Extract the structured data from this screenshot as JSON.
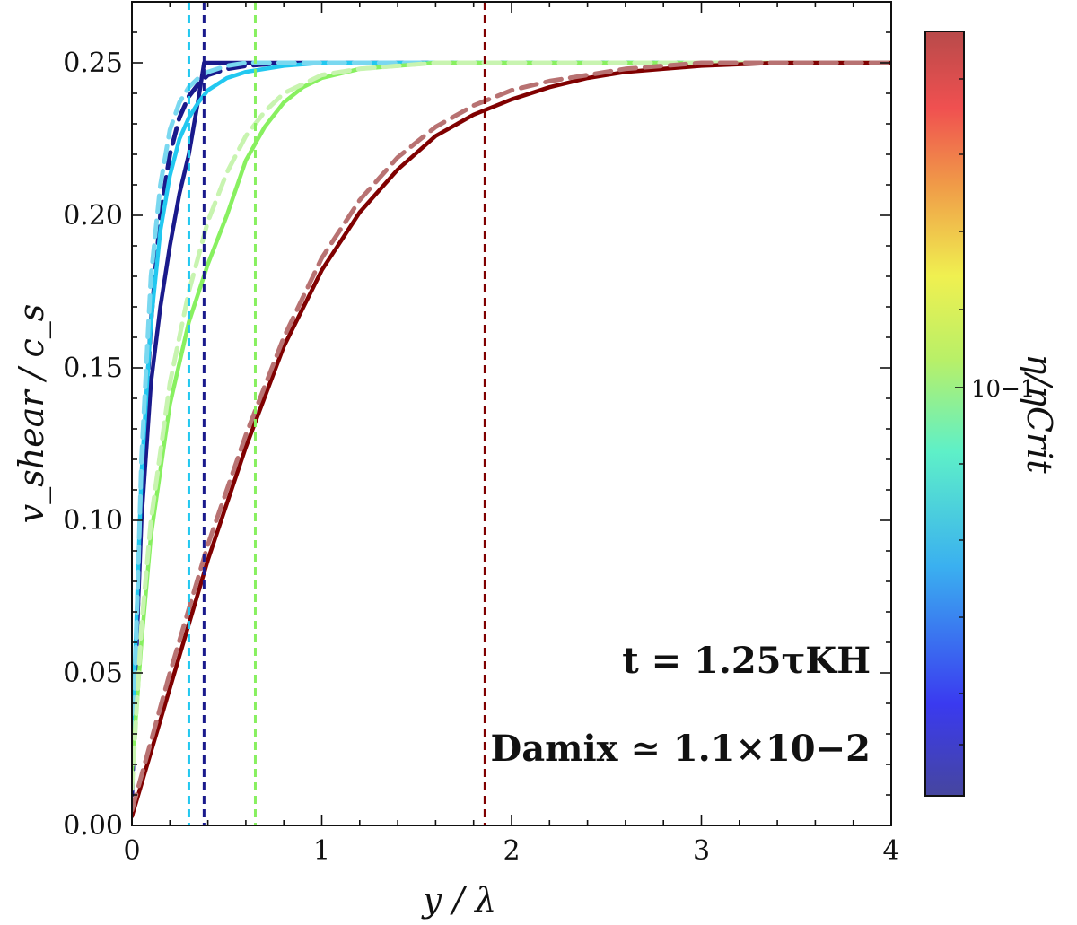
{
  "chart_data": {
    "type": "line",
    "xlabel": "y / λ",
    "ylabel": "v_shear / c_s",
    "xlim": [
      0,
      4
    ],
    "ylim": [
      0,
      0.27
    ],
    "xticks": [
      0,
      1,
      2,
      3,
      4
    ],
    "xtick_labels": [
      "0",
      "1",
      "2",
      "3",
      "4"
    ],
    "yticks": [
      0.0,
      0.05,
      0.1,
      0.15,
      0.2,
      0.25
    ],
    "ytick_labels": [
      "0.00",
      "0.05",
      "0.10",
      "0.15",
      "0.20",
      "0.25"
    ],
    "grid": false,
    "annotations": {
      "time": "t = 1.25τKH",
      "damkohler": "Damix ≃ 1.1×10−2"
    },
    "colorbar": {
      "label": "η/ηCrit",
      "scale": "log",
      "colormap": "jet",
      "tick_label": "10−1"
    },
    "series": [
      {
        "color": "#1a1a8c",
        "style": "solid",
        "x": [
          0,
          0.05,
          0.1,
          0.15,
          0.2,
          0.25,
          0.3,
          0.35,
          0.38,
          0.45,
          0.6,
          1.0,
          2.0,
          3.0,
          4.0
        ],
        "y": [
          0.02,
          0.1,
          0.145,
          0.17,
          0.19,
          0.207,
          0.22,
          0.238,
          0.25,
          0.25,
          0.25,
          0.25,
          0.25,
          0.25,
          0.25
        ]
      },
      {
        "color": "#1a1a8c",
        "style": "dashed",
        "x": [
          0,
          0.05,
          0.1,
          0.15,
          0.2,
          0.25,
          0.3,
          0.35,
          0.4,
          0.5,
          0.6,
          0.8,
          1.0,
          1.5,
          2.0,
          3.0,
          4.0
        ],
        "y": [
          0.01,
          0.11,
          0.165,
          0.2,
          0.22,
          0.232,
          0.239,
          0.243,
          0.246,
          0.248,
          0.249,
          0.25,
          0.25,
          0.25,
          0.25,
          0.25,
          0.25
        ]
      },
      {
        "color": "#22c8f0",
        "style": "solid",
        "x": [
          0,
          0.05,
          0.1,
          0.15,
          0.2,
          0.25,
          0.3,
          0.35,
          0.4,
          0.5,
          0.6,
          0.8,
          1.0,
          1.5,
          2.0,
          3.0,
          4.0
        ],
        "y": [
          0.025,
          0.115,
          0.165,
          0.195,
          0.213,
          0.225,
          0.232,
          0.237,
          0.241,
          0.245,
          0.247,
          0.249,
          0.25,
          0.25,
          0.25,
          0.25,
          0.25
        ]
      },
      {
        "color": "#7ad8f0",
        "style": "dashed",
        "x": [
          0,
          0.05,
          0.1,
          0.15,
          0.2,
          0.25,
          0.3,
          0.35,
          0.4,
          0.5,
          0.6,
          0.8,
          1.0,
          2.0,
          3.0,
          4.0
        ],
        "y": [
          0.012,
          0.12,
          0.18,
          0.21,
          0.228,
          0.237,
          0.242,
          0.245,
          0.247,
          0.249,
          0.25,
          0.25,
          0.25,
          0.25,
          0.25,
          0.25
        ]
      },
      {
        "color": "#88f060",
        "style": "solid",
        "x": [
          0,
          0.05,
          0.1,
          0.2,
          0.3,
          0.4,
          0.5,
          0.6,
          0.7,
          0.8,
          0.9,
          1.0,
          1.2,
          1.4,
          1.6,
          2.0,
          3.0,
          4.0
        ],
        "y": [
          0.018,
          0.06,
          0.095,
          0.138,
          0.165,
          0.184,
          0.2,
          0.218,
          0.229,
          0.237,
          0.242,
          0.245,
          0.248,
          0.249,
          0.25,
          0.25,
          0.25,
          0.25
        ]
      },
      {
        "color": "#c8f4b0",
        "style": "dashed",
        "x": [
          0,
          0.05,
          0.1,
          0.2,
          0.3,
          0.4,
          0.5,
          0.6,
          0.7,
          0.8,
          1.0,
          1.2,
          1.4,
          1.6,
          2.0,
          3.0,
          4.0
        ],
        "y": [
          0.012,
          0.065,
          0.1,
          0.145,
          0.175,
          0.198,
          0.214,
          0.226,
          0.234,
          0.24,
          0.246,
          0.248,
          0.249,
          0.25,
          0.25,
          0.25,
          0.25
        ]
      },
      {
        "color": "#800000",
        "style": "solid",
        "x": [
          0,
          0.2,
          0.4,
          0.6,
          0.8,
          1.0,
          1.2,
          1.4,
          1.6,
          1.8,
          2.0,
          2.2,
          2.4,
          2.6,
          2.8,
          3.0,
          3.4,
          4.0
        ],
        "y": [
          0.003,
          0.045,
          0.087,
          0.124,
          0.157,
          0.182,
          0.201,
          0.215,
          0.226,
          0.233,
          0.238,
          0.242,
          0.245,
          0.247,
          0.248,
          0.249,
          0.25,
          0.25
        ]
      },
      {
        "color": "#b87272",
        "style": "dashed",
        "x": [
          0,
          0.2,
          0.4,
          0.6,
          0.8,
          1.0,
          1.2,
          1.4,
          1.6,
          1.8,
          2.0,
          2.2,
          2.4,
          2.6,
          2.8,
          3.0,
          3.4,
          4.0
        ],
        "y": [
          0.005,
          0.05,
          0.092,
          0.128,
          0.16,
          0.186,
          0.205,
          0.219,
          0.229,
          0.236,
          0.241,
          0.244,
          0.246,
          0.248,
          0.249,
          0.25,
          0.25,
          0.25
        ]
      }
    ],
    "vertical_lines": [
      {
        "x": 0.3,
        "color": "#22c8f0"
      },
      {
        "x": 0.38,
        "color": "#1a1a8c"
      },
      {
        "x": 0.65,
        "color": "#88f060"
      },
      {
        "x": 1.86,
        "color": "#800000"
      }
    ]
  }
}
